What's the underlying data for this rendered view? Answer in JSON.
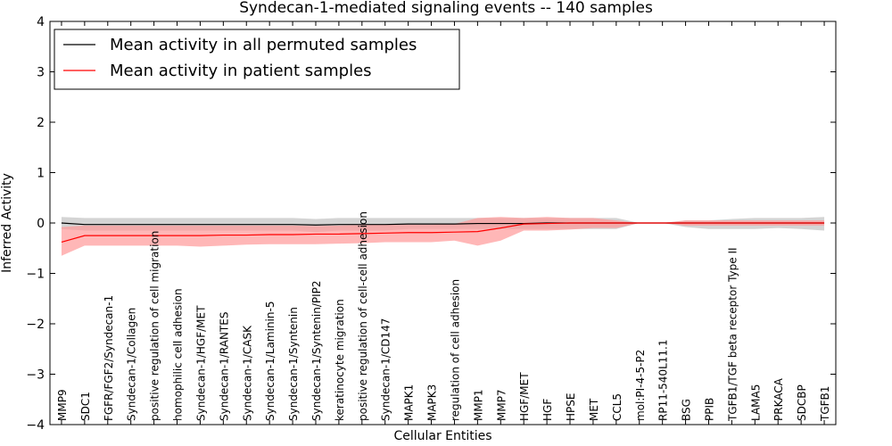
{
  "chart_data": {
    "type": "line",
    "title": "Syndecan-1-mediated signaling events -- 140 samples",
    "xlabel": "Cellular Entities",
    "ylabel": "Inferred Activity",
    "ylim": [
      -4,
      4
    ],
    "yticks": [
      -4,
      -3,
      -2,
      -1,
      0,
      1,
      2,
      3,
      4
    ],
    "grid": false,
    "legend_position": "top-left",
    "categories": [
      "MMP9",
      "SDC1",
      "FGFR/FGF2/Syndecan-1",
      "Syndecan-1/Collagen",
      "positive regulation of cell migration",
      "homophilic cell adhesion",
      "Syndecan-1/HGF/MET",
      "Syndecan-1/RANTES",
      "Syndecan-1/CASK",
      "Syndecan-1/Laminin-5",
      "Syndecan-1/Syntenin",
      "Syndecan-1/Syntenin/PIP2",
      "keratinocyte migration",
      "positive regulation of cell-cell adhesion",
      "Syndecan-1/CD147",
      "MAPK1",
      "MAPK3",
      "regulation of cell adhesion",
      "MMP1",
      "MMP7",
      "HGF/MET",
      "HGF",
      "HPSE",
      "MET",
      "CCL5",
      "mol:PI-4-5-P2",
      "RP11-540L11.1",
      "BSG",
      "PPIB",
      "TGFB1/TGF beta receptor Type II",
      "LAMA5",
      "PRKACA",
      "SDCBP",
      "TGFB1"
    ],
    "series": [
      {
        "name": "Mean activity in all permuted samples",
        "color": "#000000",
        "values": [
          0.0,
          -0.03,
          -0.03,
          -0.03,
          -0.03,
          -0.03,
          -0.03,
          -0.03,
          -0.03,
          -0.03,
          -0.03,
          -0.04,
          -0.03,
          -0.03,
          -0.03,
          -0.02,
          -0.02,
          -0.02,
          -0.01,
          -0.01,
          -0.01,
          0.0,
          0.0,
          0.0,
          0.0,
          0.0,
          0.0,
          0.0,
          0.0,
          0.0,
          0.0,
          0.0,
          0.0,
          0.0
        ],
        "band_upper": [
          0.12,
          0.1,
          0.1,
          0.1,
          0.1,
          0.1,
          0.1,
          0.1,
          0.1,
          0.1,
          0.1,
          0.08,
          0.1,
          0.1,
          0.1,
          0.1,
          0.1,
          0.1,
          0.1,
          0.1,
          0.1,
          0.1,
          0.1,
          0.1,
          0.1,
          0.0,
          0.0,
          0.05,
          0.05,
          0.08,
          0.1,
          0.1,
          0.1,
          0.12
        ],
        "band_lower": [
          -0.12,
          -0.15,
          -0.15,
          -0.15,
          -0.15,
          -0.15,
          -0.15,
          -0.15,
          -0.15,
          -0.15,
          -0.15,
          -0.18,
          -0.15,
          -0.15,
          -0.15,
          -0.12,
          -0.12,
          -0.12,
          -0.12,
          -0.12,
          -0.12,
          -0.12,
          -0.12,
          -0.12,
          -0.12,
          0.0,
          0.0,
          -0.08,
          -0.12,
          -0.12,
          -0.12,
          -0.1,
          -0.12,
          -0.15
        ],
        "band_color": "#aaaaaa"
      },
      {
        "name": "Mean activity in patient samples",
        "color": "#ff0000",
        "values": [
          -0.38,
          -0.25,
          -0.25,
          -0.25,
          -0.25,
          -0.25,
          -0.25,
          -0.24,
          -0.24,
          -0.23,
          -0.23,
          -0.22,
          -0.22,
          -0.21,
          -0.2,
          -0.19,
          -0.19,
          -0.18,
          -0.17,
          -0.1,
          -0.02,
          -0.01,
          0.0,
          0.0,
          0.0,
          0.0,
          0.0,
          0.0,
          0.0,
          0.0,
          0.0,
          0.0,
          0.0,
          0.0
        ],
        "band_upper": [
          -0.08,
          -0.05,
          -0.05,
          -0.05,
          -0.05,
          -0.05,
          -0.05,
          -0.05,
          -0.05,
          -0.05,
          -0.05,
          -0.06,
          -0.05,
          -0.04,
          -0.03,
          -0.03,
          -0.03,
          -0.02,
          0.1,
          0.12,
          0.1,
          0.12,
          0.1,
          0.1,
          0.05,
          0.0,
          0.0,
          0.05,
          0.05,
          0.05,
          0.05,
          0.05,
          0.05,
          0.05
        ],
        "band_lower": [
          -0.65,
          -0.45,
          -0.45,
          -0.45,
          -0.45,
          -0.45,
          -0.47,
          -0.45,
          -0.43,
          -0.42,
          -0.42,
          -0.42,
          -0.41,
          -0.4,
          -0.38,
          -0.38,
          -0.38,
          -0.35,
          -0.45,
          -0.35,
          -0.15,
          -0.15,
          -0.13,
          -0.1,
          -0.1,
          0.0,
          0.0,
          -0.05,
          -0.05,
          -0.05,
          -0.05,
          -0.05,
          -0.05,
          -0.05
        ],
        "band_color": "#ff9999"
      }
    ]
  }
}
